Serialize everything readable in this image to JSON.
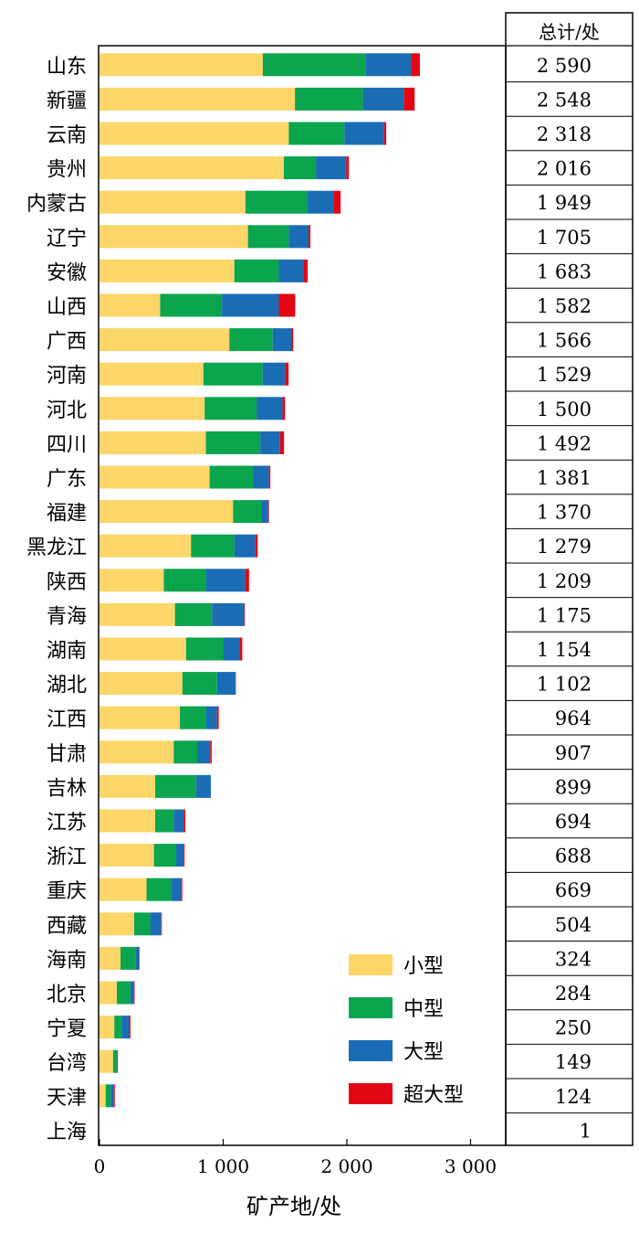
{
  "chart_data": {
    "type": "bar",
    "orientation": "horizontal",
    "stacked": true,
    "xlabel": "矿产地/处",
    "xlim": [
      0,
      3300
    ],
    "xticks": [
      0,
      1000,
      2000,
      3000
    ],
    "xtick_labels": [
      "0",
      "1 000",
      "2 000",
      "3 000"
    ],
    "grid": false,
    "legend_position": "bottom-right",
    "categories": [
      "山东",
      "新疆",
      "云南",
      "贵州",
      "内蒙古",
      "辽宁",
      "安徽",
      "山西",
      "广西",
      "河南",
      "河北",
      "四川",
      "广东",
      "福建",
      "黑龙江",
      "陕西",
      "青海",
      "湖南",
      "湖北",
      "江西",
      "甘肃",
      "吉林",
      "江苏",
      "浙江",
      "重庆",
      "西藏",
      "海南",
      "北京",
      "宁夏",
      "台湾",
      "天津",
      "上海"
    ],
    "series": [
      {
        "name": "小型",
        "color": "#FCD669",
        "values": [
          1320,
          1580,
          1530,
          1490,
          1180,
          1200,
          1090,
          490,
          1050,
          840,
          850,
          860,
          890,
          1080,
          740,
          520,
          610,
          700,
          670,
          650,
          600,
          450,
          450,
          440,
          380,
          280,
          170,
          140,
          120,
          110,
          50,
          0
        ]
      },
      {
        "name": "中型",
        "color": "#0BA54E",
        "values": [
          830,
          550,
          450,
          260,
          500,
          330,
          360,
          500,
          350,
          480,
          420,
          440,
          350,
          230,
          350,
          340,
          300,
          300,
          280,
          210,
          190,
          330,
          150,
          180,
          200,
          130,
          120,
          110,
          60,
          30,
          40,
          1
        ]
      },
      {
        "name": "大型",
        "color": "#1A6DB5",
        "values": [
          370,
          330,
          320,
          245,
          210,
          160,
          200,
          460,
          150,
          180,
          210,
          160,
          130,
          55,
          170,
          320,
          260,
          130,
          150,
          90,
          105,
          120,
          80,
          60,
          80,
          90,
          30,
          30,
          60,
          5,
          25,
          0
        ]
      },
      {
        "name": "超大型",
        "color": "#E30613",
        "values": [
          70,
          88,
          18,
          21,
          59,
          15,
          33,
          132,
          16,
          29,
          20,
          32,
          11,
          5,
          19,
          29,
          5,
          24,
          2,
          14,
          12,
          0,
          14,
          8,
          9,
          4,
          4,
          4,
          10,
          4,
          9,
          0
        ]
      }
    ],
    "totals_header": "总计/处",
    "totals": [
      "2 590",
      "2 548",
      "2 318",
      "2 016",
      "1 949",
      "1 705",
      "1 683",
      "1 582",
      "1 566",
      "1 529",
      "1 500",
      "1 492",
      "1 381",
      "1 370",
      "1 279",
      "1 209",
      "1 175",
      "1 154",
      "1 102",
      "964",
      "907",
      "899",
      "694",
      "688",
      "669",
      "504",
      "324",
      "284",
      "250",
      "149",
      "124",
      "1"
    ]
  }
}
